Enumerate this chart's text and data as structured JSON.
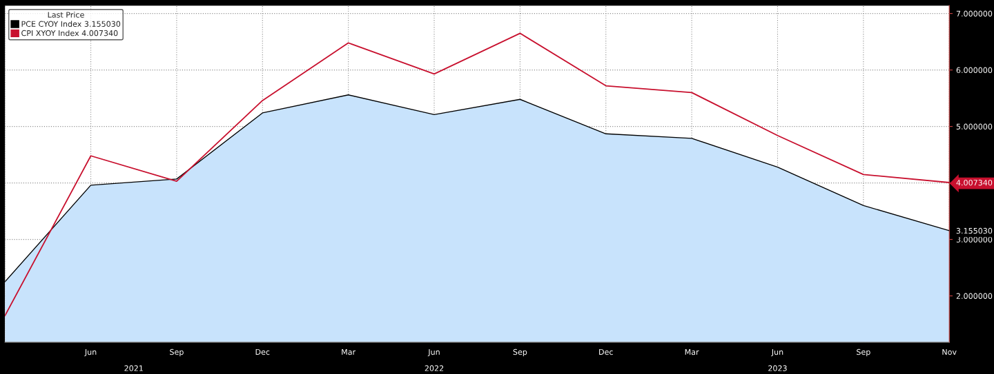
{
  "chart_data": {
    "type": "line",
    "legend_title": "Last Price",
    "categories": [
      null,
      "Jun",
      "Sep",
      "Dec",
      "Mar",
      "Jun",
      "Sep",
      "Dec",
      "Mar",
      "Jun",
      "Sep",
      "Nov"
    ],
    "series": [
      {
        "name": "PCE CYOY Index 3.155030",
        "type": "area",
        "color": "#c8e3fc",
        "values": [
          2.25,
          3.96,
          4.07,
          5.24,
          5.56,
          5.21,
          5.48,
          4.87,
          4.79,
          4.28,
          3.6,
          3.15503
        ]
      },
      {
        "name": "CPI XYOY Index 4.007340",
        "color": "#c8102e",
        "values": [
          1.65,
          4.48,
          4.03,
          5.46,
          6.48,
          5.93,
          6.65,
          5.72,
          5.6,
          4.84,
          4.15,
          4.00734
        ]
      }
    ],
    "ylim": [
      1.18,
      7.14
    ],
    "yticks": [
      {
        "value": 2,
        "label": "2.000000"
      },
      {
        "value": 3,
        "label": "3.000000"
      },
      {
        "value": 3.15503,
        "label": "3.155030"
      },
      {
        "value": 4,
        "label": null
      },
      {
        "value": 4.00734,
        "label": "4.007340"
      },
      {
        "value": 5,
        "label": "5.000000"
      },
      {
        "value": 6,
        "label": "6.000000"
      },
      {
        "value": 7,
        "label": "7.000000"
      }
    ],
    "annotations": [
      "2021",
      "2022",
      "2023"
    ],
    "grid": true,
    "legend": "top left"
  }
}
